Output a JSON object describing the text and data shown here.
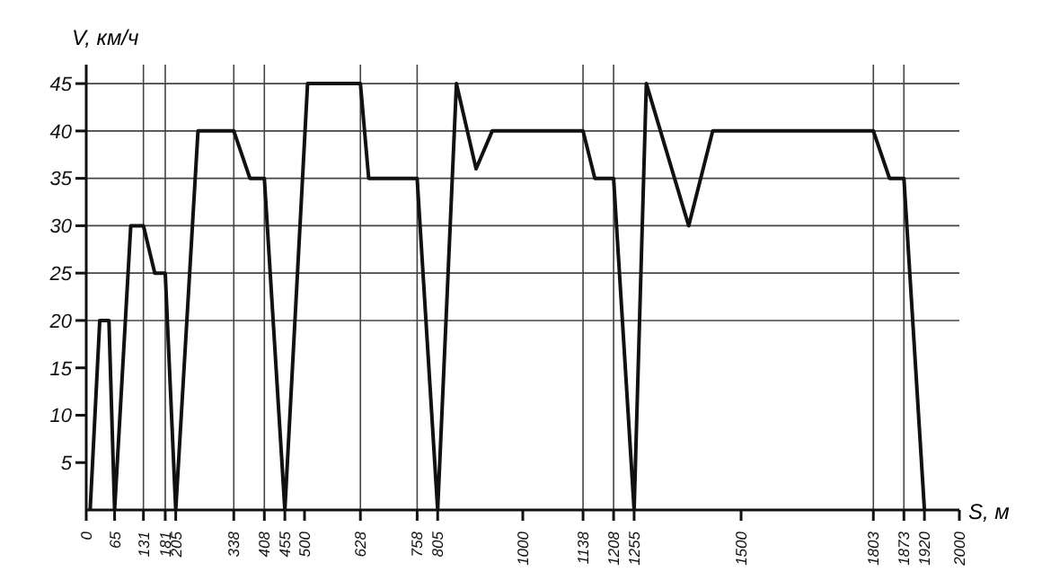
{
  "chart_data": {
    "type": "line",
    "xlabel": "S, м",
    "ylabel": "V, км/ч",
    "series": [
      {
        "color": "#111111",
        "x": [
          9,
          31,
          52,
          65,
          102,
          131,
          157,
          181,
          205,
          256,
          338,
          375,
          408,
          455,
          507,
          628,
          647,
          758,
          805,
          848,
          893,
          930,
          1138,
          1165,
          1208,
          1255,
          1283,
          1380,
          1435,
          1803,
          1840,
          1873,
          1920
        ],
        "values": [
          0,
          20,
          20,
          0,
          30,
          30,
          25,
          25,
          0,
          40,
          40,
          35,
          35,
          0,
          45,
          45,
          35,
          35,
          0,
          45,
          36,
          40,
          40,
          35,
          35,
          0,
          45,
          30,
          40,
          40,
          35,
          35,
          0
        ]
      }
    ],
    "xlim": [
      0,
      2000
    ],
    "ylim": [
      0,
      47
    ],
    "xticks": [
      0,
      65,
      131,
      181,
      205,
      338,
      408,
      455,
      500,
      628,
      758,
      805,
      1000,
      1138,
      1208,
      1255,
      1500,
      1803,
      1873,
      1920,
      2000
    ],
    "yticks": [
      5,
      10,
      15,
      20,
      25,
      30,
      35,
      40,
      45
    ],
    "ref_lines": [
      {
        "axis": "y",
        "value": 20
      },
      {
        "axis": "y",
        "value": 25
      },
      {
        "axis": "y",
        "value": 30
      },
      {
        "axis": "y",
        "value": 35
      },
      {
        "axis": "y",
        "value": 40
      },
      {
        "axis": "y",
        "value": 45
      },
      {
        "axis": "x",
        "value": 131
      },
      {
        "axis": "x",
        "value": 181
      },
      {
        "axis": "x",
        "value": 338
      },
      {
        "axis": "x",
        "value": 408
      },
      {
        "axis": "x",
        "value": 628
      },
      {
        "axis": "x",
        "value": 758
      },
      {
        "axis": "x",
        "value": 1138
      },
      {
        "axis": "x",
        "value": 1208
      },
      {
        "axis": "x",
        "value": 1803
      },
      {
        "axis": "x",
        "value": 1873
      }
    ],
    "grid": false,
    "legend": false,
    "marker": "none",
    "line_style": "solid"
  }
}
